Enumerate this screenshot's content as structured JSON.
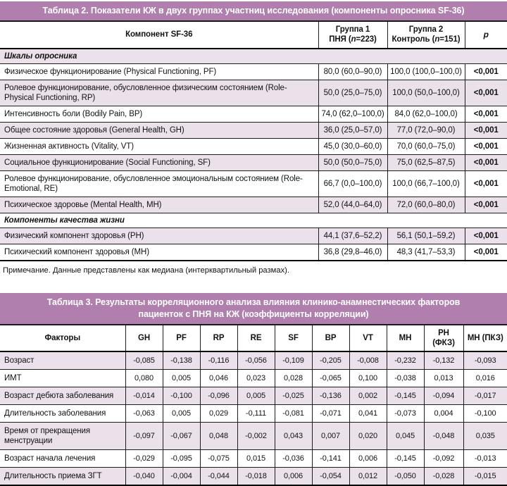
{
  "colors": {
    "title_bar": "#b07fad",
    "row_shade": "#eae1ea",
    "border": "#1e1e1e",
    "p_significant": "#000000"
  },
  "table2": {
    "title": "Таблица 2. Показатели КЖ в двух группах участниц исследования (компоненты опросника SF-36)",
    "columns": {
      "component": "Компонент SF-36",
      "group1_line1": "Группа 1",
      "group1_line2_pre": "ПНЯ (",
      "group1_line2_post": "=223)",
      "group2_line1": "Группа 2",
      "group2_line2_pre": "Контроль (",
      "group2_line2_post": "=151)",
      "n_symbol": "n",
      "p": "p"
    },
    "rows": [
      {
        "type": "section",
        "label": "Шкалы опросника"
      },
      {
        "type": "row",
        "label": "Физическое функционирование (Physical Functioning, PF)",
        "group1": "80,0 (60,0–90,0)",
        "group2": "100,0 (100,0–100,0)",
        "p": "<0,001"
      },
      {
        "type": "row",
        "label": "Ролевое функционирование, обусловленное физическим состоянием (Role-Physical Functioning, RP)",
        "group1": "50,0 (25,0–75,0)",
        "group2": "100,0 (50,0–100,0)",
        "p": "<0,001"
      },
      {
        "type": "row",
        "label": "Интенсивность боли (Bodily Pain, BP)",
        "group1": "74,0 (62,0–100,0)",
        "group2": "84,0 (62,0–100,0)",
        "p": "<0,001"
      },
      {
        "type": "row",
        "label": "Общее состояние здоровья (General Health, GH)",
        "group1": "36,0 (25,0–57,0)",
        "group2": "77,0 (72,0–90,0)",
        "p": "<0,001"
      },
      {
        "type": "row",
        "label": "Жизненная активность (Vitality, VT)",
        "group1": "45,0 (30,0–60,0)",
        "group2": "70,0 (60,0–75,0)",
        "p": "<0,001"
      },
      {
        "type": "row",
        "label": "Социальное функционирование (Social Functioning, SF)",
        "group1": "50,0 (50,0–75,0)",
        "group2": "75,0 (62,5–87,5)",
        "p": "<0,001"
      },
      {
        "type": "row",
        "label": "Ролевое функционирование, обусловленное эмоциональным состоянием (Role-Emotional, RE)",
        "group1": "66,7 (0,0–100,0)",
        "group2": "100,0 (66,7–100,0)",
        "p": "<0,001"
      },
      {
        "type": "row",
        "label": "Психическое здоровье (Mental Health, MH)",
        "group1": "52,0 (44,0–64,0)",
        "group2": "72,0 (60,0–80,0)",
        "p": "<0,001"
      },
      {
        "type": "section",
        "label": "Компоненты качества жизни"
      },
      {
        "type": "row",
        "label": "Физический компонент здоровья (PH)",
        "group1": "44,1 (37,6–52,2)",
        "group2": "56,1 (50,1–59,2)",
        "p": "<0,001"
      },
      {
        "type": "row",
        "label": "Психический компонент здоровья (MH)",
        "group1": "36,8 (29,8–46,0)",
        "group2": "48,3 (41,7–53,3)",
        "p": "<0,001"
      }
    ],
    "note": "Примечание. Данные представлены как медиана (интерквартильный размах)."
  },
  "table3": {
    "title": "Таблица 3. Результаты корреляционного анализа влияния клинико-анамнестических факторов пациенток с ПНЯ на КЖ (коэффициенты корреляции)",
    "headers": [
      "Факторы",
      "GH",
      "PF",
      "RP",
      "RE",
      "SF",
      "BP",
      "VT",
      "MH",
      "PH (ФКЗ)",
      "MH (ПКЗ)"
    ],
    "rows": [
      {
        "factor": "Возраст",
        "values": [
          "-0,085",
          "-0,138",
          "-0,116",
          "-0,056",
          "-0,109",
          "-0,205",
          "-0,008",
          "-0,232",
          "-0,132",
          "-0,093"
        ]
      },
      {
        "factor": "ИМТ",
        "values": [
          "0,080",
          "0,005",
          "0,046",
          "0,023",
          "0,028",
          "-0,065",
          "0,100",
          "-0,038",
          "0,013",
          "0,016"
        ]
      },
      {
        "factor": "Возраст дебюта заболевания",
        "values": [
          "-0,014",
          "-0,100",
          "-0,096",
          "0,005",
          "-0,025",
          "-0,136",
          "0,002",
          "-0,145",
          "-0,094",
          "-0,017"
        ]
      },
      {
        "factor": "Длительность заболевания",
        "values": [
          "-0,063",
          "0,005",
          "0,029",
          "-0,111",
          "-0,081",
          "-0,071",
          "0,041",
          "-0,073",
          "0,004",
          "-0,100"
        ]
      },
      {
        "factor": "Время от прекращения менструации",
        "values": [
          "-0,097",
          "-0,067",
          "0,048",
          "-0,002",
          "0,043",
          "0,007",
          "0,020",
          "0,045",
          "-0,048",
          "0,035"
        ]
      },
      {
        "factor": "Возраст начала лечения",
        "values": [
          "-0,029",
          "-0,095",
          "-0,075",
          "0,015",
          "-0,036",
          "-0,141",
          "0,006",
          "-0,145",
          "-0,092",
          "-0,013"
        ]
      },
      {
        "factor": "Длительность приема ЗГТ",
        "values": [
          "-0,040",
          "-0,004",
          "-0,044",
          "-0,018",
          "0,006",
          "-0,054",
          "0,012",
          "-0,050",
          "-0,028",
          "-0,015"
        ]
      }
    ]
  }
}
